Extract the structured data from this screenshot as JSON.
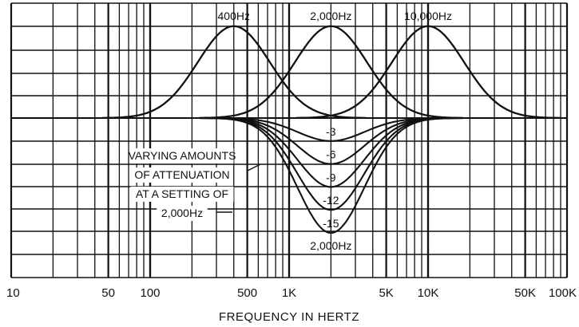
{
  "chart_data": {
    "type": "line",
    "xlabel": "FREQUENCY IN HERTZ",
    "x_scale": "log",
    "xlim": [
      10,
      100000
    ],
    "ylim": [
      -15,
      15
    ],
    "grid": true,
    "x_tick_labels": [
      {
        "value": 10,
        "label": "10"
      },
      {
        "value": 50,
        "label": "50"
      },
      {
        "value": 100,
        "label": "100"
      },
      {
        "value": 500,
        "label": "500"
      },
      {
        "value": 1000,
        "label": "1K"
      },
      {
        "value": 5000,
        "label": "5K"
      },
      {
        "value": 10000,
        "label": "10K"
      },
      {
        "value": 50000,
        "label": "50K"
      },
      {
        "value": 100000,
        "label": "100K"
      }
    ],
    "boost_curves": [
      {
        "label": "400Hz",
        "center": 400,
        "peak": 12
      },
      {
        "label": "2,000Hz",
        "center": 2000,
        "peak": 12
      },
      {
        "label": "10,000Hz",
        "center": 10000,
        "peak": 12
      }
    ],
    "cut_center": 2000,
    "cut_center_label": "2,000Hz",
    "cut_curves": [
      {
        "label": "-3",
        "value": -3
      },
      {
        "label": "-6",
        "value": -6
      },
      {
        "label": "-9",
        "value": -9
      },
      {
        "label": "-12",
        "value": -12
      },
      {
        "label": "-15",
        "value": -15
      }
    ],
    "annotation": [
      "VARYING AMOUNTS",
      "OF ATTENUATION",
      "AT A SETTING OF",
      "2,000Hz"
    ]
  }
}
